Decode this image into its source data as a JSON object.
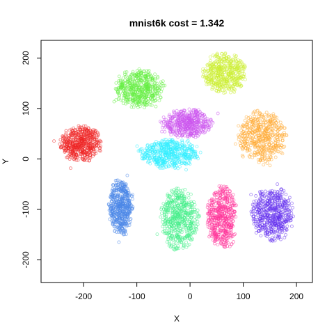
{
  "chart_data": {
    "type": "scatter",
    "title": "mnist6k cost = 1.342",
    "xlabel": "X",
    "ylabel": "Y",
    "xlim": [
      -280,
      230
    ],
    "ylim": [
      -245,
      235
    ],
    "x_ticks": [
      -200,
      -100,
      0,
      100,
      200
    ],
    "y_ticks": [
      -200,
      -100,
      0,
      100,
      200
    ],
    "grid": false,
    "legend": "none",
    "clusters": [
      {
        "color": "#ee2222",
        "center": [
          -205,
          30
        ],
        "spread": [
          38,
          35
        ],
        "n": 500
      },
      {
        "color": "#4a86e8",
        "center": [
          -130,
          -95
        ],
        "spread": [
          22,
          55
        ],
        "n": 520
      },
      {
        "color": "#66ee44",
        "center": [
          -95,
          140
        ],
        "spread": [
          45,
          38
        ],
        "n": 520
      },
      {
        "color": "#ccee33",
        "center": [
          65,
          170
        ],
        "spread": [
          40,
          40
        ],
        "n": 500
      },
      {
        "color": "#cc55ee",
        "center": [
          -5,
          70
        ],
        "spread": [
          48,
          28
        ],
        "n": 480
      },
      {
        "color": "#33eeff",
        "center": [
          -40,
          10
        ],
        "spread": [
          60,
          28
        ],
        "n": 520
      },
      {
        "color": "#ffaa33",
        "center": [
          135,
          45
        ],
        "spread": [
          45,
          50
        ],
        "n": 480
      },
      {
        "color": "#44ee88",
        "center": [
          -20,
          -120
        ],
        "spread": [
          35,
          60
        ],
        "n": 520
      },
      {
        "color": "#ff3399",
        "center": [
          60,
          -115
        ],
        "spread": [
          28,
          60
        ],
        "n": 480
      },
      {
        "color": "#6633ee",
        "center": [
          155,
          -110
        ],
        "spread": [
          38,
          55
        ],
        "n": 520
      }
    ]
  }
}
